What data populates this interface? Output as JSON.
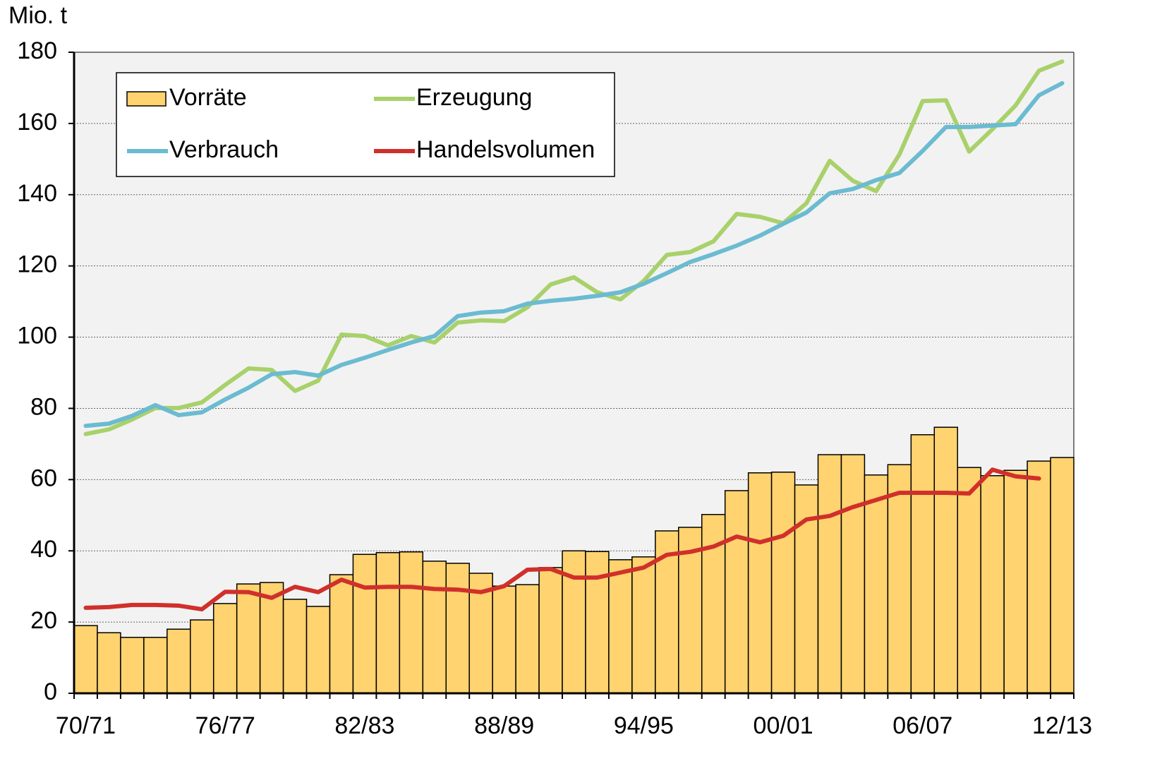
{
  "chart_data": {
    "type": "bar",
    "y_label": "Mio. t",
    "categories": [
      "70/71",
      null,
      null,
      null,
      null,
      null,
      "76/77",
      null,
      null,
      null,
      null,
      null,
      "82/83",
      null,
      null,
      null,
      null,
      null,
      "88/89",
      null,
      null,
      null,
      null,
      null,
      "94/95",
      null,
      null,
      null,
      null,
      null,
      "00/01",
      null,
      null,
      null,
      null,
      null,
      "06/07",
      null,
      null,
      null,
      null,
      null,
      "12/13"
    ],
    "ylim": [
      0,
      180
    ],
    "yticks": [
      0,
      20,
      40,
      60,
      80,
      100,
      120,
      140,
      160,
      180
    ],
    "grid": true,
    "legend": "upper left",
    "series": [
      {
        "name": "Vorräte",
        "type": "bar",
        "color": "#ffd36f",
        "values": [
          19.0,
          17.0,
          15.7,
          15.7,
          18.0,
          20.6,
          25.2,
          30.7,
          31.1,
          26.4,
          24.4,
          33.3,
          39.0,
          39.5,
          39.7,
          37.1,
          36.5,
          33.7,
          30.1,
          30.5,
          35.3,
          40.0,
          39.8,
          37.5,
          38.3,
          45.6,
          46.6,
          50.2,
          56.9,
          61.9,
          62.1,
          58.5,
          67.0,
          67.0,
          61.3,
          64.2,
          72.6,
          74.7,
          63.4,
          61.1,
          62.6,
          65.2,
          66.2
        ]
      },
      {
        "name": "Erzeugung",
        "type": "line",
        "color": "#a9d16b",
        "values": [
          72.8,
          74.1,
          76.9,
          80.1,
          80.1,
          81.7,
          86.6,
          91.2,
          90.8,
          84.9,
          87.8,
          100.7,
          100.3,
          97.7,
          100.3,
          98.5,
          104.1,
          104.7,
          104.5,
          108.4,
          114.8,
          116.8,
          112.6,
          110.6,
          115.8,
          123.1,
          123.9,
          126.9,
          134.6,
          133.8,
          132.0,
          137.6,
          149.5,
          143.9,
          141.0,
          151.3,
          166.3,
          166.5,
          152.1,
          158.4,
          165.1,
          174.8,
          177.4
        ]
      },
      {
        "name": "Verbrauch",
        "type": "line",
        "color": "#6bbbd1",
        "values": [
          75.1,
          75.7,
          77.9,
          80.9,
          78.1,
          78.9,
          82.5,
          85.8,
          89.6,
          90.2,
          89.2,
          92.2,
          94.2,
          96.4,
          98.5,
          100.3,
          105.9,
          106.9,
          107.3,
          109.4,
          110.2,
          110.8,
          111.6,
          112.6,
          115.0,
          118.0,
          121.1,
          123.3,
          125.7,
          128.5,
          131.8,
          135.0,
          140.4,
          141.6,
          144.1,
          146.1,
          152.3,
          159.0,
          159.0,
          159.4,
          159.8,
          167.9,
          171.3
        ]
      },
      {
        "name": "Handelsvolumen",
        "type": "line",
        "color": "#d0302b",
        "values": [
          24.0,
          24.2,
          24.8,
          24.8,
          24.6,
          23.6,
          28.5,
          28.4,
          26.8,
          29.9,
          28.4,
          31.9,
          29.7,
          29.9,
          29.9,
          29.3,
          29.1,
          28.4,
          30.1,
          34.7,
          34.9,
          32.5,
          32.5,
          33.9,
          35.3,
          38.9,
          39.7,
          41.2,
          44.0,
          42.4,
          44.2,
          48.8,
          49.8,
          52.3,
          54.3,
          56.3,
          56.3,
          56.3,
          56.1,
          62.8,
          60.9,
          60.3,
          null
        ]
      }
    ]
  }
}
